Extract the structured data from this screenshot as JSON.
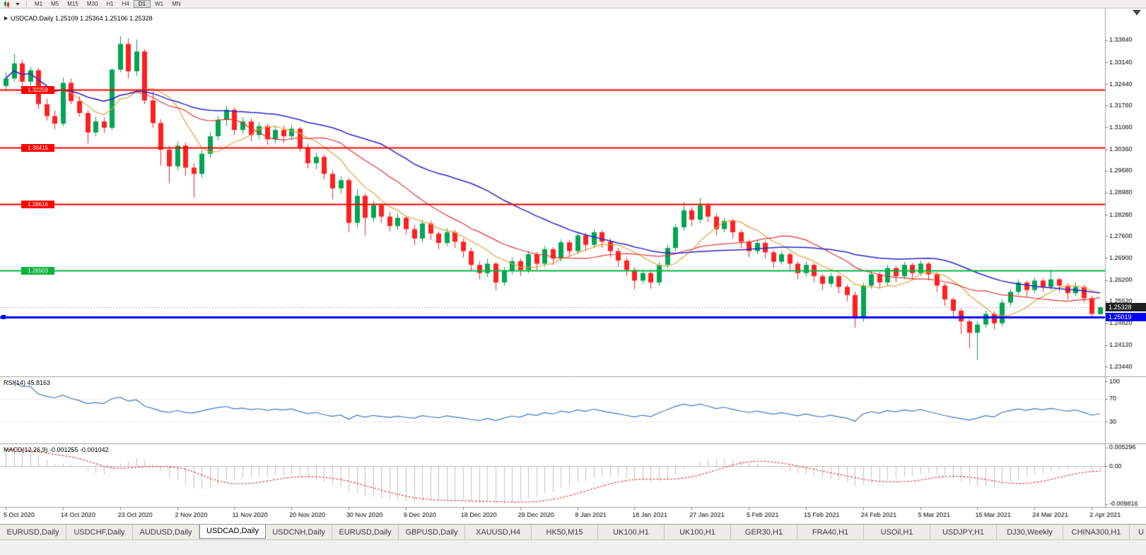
{
  "toolbar": {
    "timeframes": [
      "M1",
      "M5",
      "M15",
      "M30",
      "H1",
      "H4",
      "D1",
      "W1",
      "MN"
    ],
    "active": "D1",
    "icons": [
      "candlestick-chart-icon",
      "dropdown-arrow-icon"
    ]
  },
  "chart": {
    "info_line": "USDCAD,Daily 1.25109 1.25364 1.25106 1.25328",
    "symbol": "USDCAD",
    "timeframe": "Daily",
    "open": "1.25109",
    "high": "1.25364",
    "low": "1.25106",
    "close": "1.25328"
  },
  "chart_data": {
    "type": "candlestick",
    "symbol": "USDCAD",
    "timeframe": "Daily",
    "price_axis": {
      "range": [
        1.3485,
        1.2313
      ],
      "ticks": [
        "1.33840",
        "1.33140",
        "1.32440",
        "1.31760",
        "1.31060",
        "1.30360",
        "1.29680",
        "1.28980",
        "1.28280",
        "1.27600",
        "1.26900",
        "1.26200",
        "1.25520",
        "1.24820",
        "1.24120",
        "1.23440"
      ]
    },
    "date_ticks": [
      "5 Oct 2020",
      "14 Oct 2020",
      "23 Oct 2020",
      "2 Nov 2020",
      "11 Nov 2020",
      "20 Nov 2020",
      "30 Nov 2020",
      "9 Dec 2020",
      "18 Dec 2020",
      "29 Dec 2020",
      "8 Jan 2021",
      "18 Jan 2021",
      "27 Jan 2021",
      "5 Feb 2021",
      "15 Feb 2021",
      "24 Feb 2021",
      "5 Mar 2021",
      "15 Mar 2021",
      "24 Mar 2021",
      "2 Apr 2021"
    ],
    "bars_per_date_tick": 7,
    "candles": [
      [
        1.3238,
        1.3282,
        1.3222,
        1.3262
      ],
      [
        1.3262,
        1.334,
        1.3252,
        1.331
      ],
      [
        1.331,
        1.3322,
        1.3238,
        1.3252
      ],
      [
        1.3252,
        1.3298,
        1.324,
        1.3288
      ],
      [
        1.3288,
        1.3295,
        1.3165,
        1.318
      ],
      [
        1.318,
        1.3198,
        1.3128,
        1.3142
      ],
      [
        1.3142,
        1.316,
        1.31,
        1.3118
      ],
      [
        1.3118,
        1.3265,
        1.311,
        1.3248
      ],
      [
        1.3248,
        1.3262,
        1.318,
        1.319
      ],
      [
        1.319,
        1.3205,
        1.314,
        1.3152
      ],
      [
        1.3152,
        1.3162,
        1.3055,
        1.309
      ],
      [
        1.309,
        1.314,
        1.3078,
        1.3125
      ],
      [
        1.3125,
        1.3138,
        1.3088,
        1.3105
      ],
      [
        1.3105,
        1.3295,
        1.3098,
        1.329
      ],
      [
        1.329,
        1.3397,
        1.3282,
        1.3372
      ],
      [
        1.3372,
        1.339,
        1.3262,
        1.3285
      ],
      [
        1.3285,
        1.3386,
        1.327,
        1.3348
      ],
      [
        1.3348,
        1.3355,
        1.318,
        1.3192
      ],
      [
        1.3192,
        1.322,
        1.3105,
        1.312
      ],
      [
        1.312,
        1.3132,
        1.2985,
        1.3035
      ],
      [
        1.3035,
        1.3048,
        1.2928,
        1.2982
      ],
      [
        1.2982,
        1.3062,
        1.2968,
        1.3048
      ],
      [
        1.3048,
        1.3058,
        1.2952,
        1.2978
      ],
      [
        1.2978,
        1.2992,
        1.2882,
        1.2958
      ],
      [
        1.2958,
        1.3035,
        1.2945,
        1.3022
      ],
      [
        1.3022,
        1.3092,
        1.301,
        1.3078
      ],
      [
        1.3078,
        1.3142,
        1.3065,
        1.313
      ],
      [
        1.313,
        1.3175,
        1.311,
        1.3162
      ],
      [
        1.3162,
        1.317,
        1.3082,
        1.3098
      ],
      [
        1.3098,
        1.3138,
        1.3085,
        1.3125
      ],
      [
        1.3125,
        1.3135,
        1.3062,
        1.3082
      ],
      [
        1.3082,
        1.3122,
        1.3068,
        1.311
      ],
      [
        1.311,
        1.3118,
        1.305,
        1.3068
      ],
      [
        1.3068,
        1.311,
        1.3055,
        1.3098
      ],
      [
        1.3098,
        1.3112,
        1.3058,
        1.3078
      ],
      [
        1.3078,
        1.3115,
        1.3065,
        1.3102
      ],
      [
        1.3102,
        1.3108,
        1.3028,
        1.3042
      ],
      [
        1.3042,
        1.3055,
        1.2975,
        1.2992
      ],
      [
        1.2992,
        1.3025,
        1.2972,
        1.3012
      ],
      [
        1.3012,
        1.302,
        1.294,
        1.2958
      ],
      [
        1.2958,
        1.2968,
        1.2878,
        1.2912
      ],
      [
        1.2912,
        1.295,
        1.2895,
        1.2938
      ],
      [
        1.2938,
        1.2945,
        1.2772,
        1.2802
      ],
      [
        1.2802,
        1.2908,
        1.2788,
        1.2888
      ],
      [
        1.2888,
        1.2895,
        1.2762,
        1.2818
      ],
      [
        1.2818,
        1.2872,
        1.2805,
        1.2858
      ],
      [
        1.2858,
        1.2865,
        1.2802,
        1.2822
      ],
      [
        1.2822,
        1.2838,
        1.2775,
        1.2792
      ],
      [
        1.2792,
        1.2832,
        1.278,
        1.2818
      ],
      [
        1.2818,
        1.2825,
        1.2765,
        1.2782
      ],
      [
        1.2782,
        1.2795,
        1.2732,
        1.2752
      ],
      [
        1.2752,
        1.2812,
        1.274,
        1.28
      ],
      [
        1.28,
        1.2808,
        1.2748,
        1.2768
      ],
      [
        1.2768,
        1.2775,
        1.2718,
        1.2738
      ],
      [
        1.2738,
        1.2785,
        1.2728,
        1.2772
      ],
      [
        1.2772,
        1.278,
        1.2722,
        1.2742
      ],
      [
        1.2742,
        1.2752,
        1.2692,
        1.2712
      ],
      [
        1.2712,
        1.2722,
        1.2648,
        1.2668
      ],
      [
        1.2668,
        1.268,
        1.2622,
        1.2642
      ],
      [
        1.2642,
        1.2688,
        1.263,
        1.2672
      ],
      [
        1.2672,
        1.2678,
        1.2588,
        1.2612
      ],
      [
        1.2612,
        1.266,
        1.2602,
        1.2648
      ],
      [
        1.2648,
        1.2692,
        1.2638,
        1.268
      ],
      [
        1.268,
        1.2688,
        1.2632,
        1.2652
      ],
      [
        1.2652,
        1.2712,
        1.2642,
        1.2702
      ],
      [
        1.2702,
        1.271,
        1.2652,
        1.2672
      ],
      [
        1.2672,
        1.2728,
        1.2662,
        1.2718
      ],
      [
        1.2718,
        1.2725,
        1.2668,
        1.2688
      ],
      [
        1.2688,
        1.275,
        1.2678,
        1.274
      ],
      [
        1.274,
        1.2748,
        1.2692,
        1.2712
      ],
      [
        1.2712,
        1.2772,
        1.2702,
        1.2762
      ],
      [
        1.2762,
        1.277,
        1.2712,
        1.2732
      ],
      [
        1.2732,
        1.2782,
        1.2722,
        1.2772
      ],
      [
        1.2772,
        1.278,
        1.2722,
        1.2742
      ],
      [
        1.2742,
        1.2752,
        1.2692,
        1.2712
      ],
      [
        1.2712,
        1.2722,
        1.2662,
        1.2682
      ],
      [
        1.2682,
        1.2692,
        1.2632,
        1.2652
      ],
      [
        1.2652,
        1.266,
        1.259,
        1.2618
      ],
      [
        1.2618,
        1.2652,
        1.2608,
        1.2642
      ],
      [
        1.2642,
        1.265,
        1.2592,
        1.2612
      ],
      [
        1.2612,
        1.2678,
        1.2602,
        1.2668
      ],
      [
        1.2668,
        1.2732,
        1.2658,
        1.2722
      ],
      [
        1.2722,
        1.2798,
        1.2712,
        1.2788
      ],
      [
        1.2788,
        1.2868,
        1.2778,
        1.2842
      ],
      [
        1.2842,
        1.2852,
        1.2792,
        1.2812
      ],
      [
        1.2812,
        1.2882,
        1.2802,
        1.2858
      ],
      [
        1.2858,
        1.2865,
        1.2805,
        1.2822
      ],
      [
        1.2822,
        1.2832,
        1.2762,
        1.2782
      ],
      [
        1.2782,
        1.2818,
        1.2772,
        1.2808
      ],
      [
        1.2808,
        1.2815,
        1.2752,
        1.2772
      ],
      [
        1.2772,
        1.278,
        1.2722,
        1.2742
      ],
      [
        1.2742,
        1.275,
        1.2692,
        1.2712
      ],
      [
        1.2712,
        1.2748,
        1.2702,
        1.2738
      ],
      [
        1.2738,
        1.2745,
        1.2688,
        1.2708
      ],
      [
        1.2708,
        1.2715,
        1.2658,
        1.2678
      ],
      [
        1.2678,
        1.2712,
        1.2668,
        1.2702
      ],
      [
        1.2702,
        1.2708,
        1.2652,
        1.2672
      ],
      [
        1.2672,
        1.268,
        1.2622,
        1.2642
      ],
      [
        1.2642,
        1.2678,
        1.2632,
        1.2668
      ],
      [
        1.2668,
        1.2675,
        1.2612,
        1.2632
      ],
      [
        1.2632,
        1.264,
        1.2588,
        1.2608
      ],
      [
        1.2608,
        1.2642,
        1.2598,
        1.2632
      ],
      [
        1.2632,
        1.2638,
        1.2578,
        1.2598
      ],
      [
        1.2598,
        1.2605,
        1.2552,
        1.2572
      ],
      [
        1.2572,
        1.2582,
        1.2468,
        1.2498
      ],
      [
        1.2498,
        1.2612,
        1.2488,
        1.2602
      ],
      [
        1.2602,
        1.2648,
        1.2592,
        1.2638
      ],
      [
        1.2638,
        1.2645,
        1.2592,
        1.2612
      ],
      [
        1.2612,
        1.2668,
        1.2602,
        1.2658
      ],
      [
        1.2658,
        1.2665,
        1.2612,
        1.2632
      ],
      [
        1.2632,
        1.2678,
        1.2622,
        1.2668
      ],
      [
        1.2668,
        1.2675,
        1.2622,
        1.2642
      ],
      [
        1.2642,
        1.2682,
        1.2632,
        1.2672
      ],
      [
        1.2672,
        1.2678,
        1.2618,
        1.2638
      ],
      [
        1.2638,
        1.2645,
        1.2582,
        1.2602
      ],
      [
        1.2602,
        1.261,
        1.2538,
        1.2558
      ],
      [
        1.2558,
        1.2565,
        1.2502,
        1.2522
      ],
      [
        1.2522,
        1.253,
        1.2448,
        1.2488
      ],
      [
        1.2488,
        1.2495,
        1.2402,
        1.2452
      ],
      [
        1.2452,
        1.2488,
        1.2365,
        1.2478
      ],
      [
        1.2478,
        1.2522,
        1.2468,
        1.2512
      ],
      [
        1.2512,
        1.252,
        1.2462,
        1.2482
      ],
      [
        1.2482,
        1.2558,
        1.2472,
        1.2548
      ],
      [
        1.2548,
        1.2592,
        1.2538,
        1.2582
      ],
      [
        1.2582,
        1.2622,
        1.2572,
        1.2612
      ],
      [
        1.2612,
        1.2618,
        1.2568,
        1.2588
      ],
      [
        1.2588,
        1.2628,
        1.2578,
        1.2618
      ],
      [
        1.2618,
        1.2625,
        1.2582,
        1.2598
      ],
      [
        1.2598,
        1.2648,
        1.2588,
        1.2622
      ],
      [
        1.2622,
        1.2628,
        1.2582,
        1.2602
      ],
      [
        1.2602,
        1.261,
        1.2558,
        1.2578
      ],
      [
        1.2578,
        1.2612,
        1.2568,
        1.2598
      ],
      [
        1.2598,
        1.2605,
        1.2548,
        1.2562
      ],
      [
        1.2562,
        1.257,
        1.2498,
        1.2512
      ],
      [
        1.25109,
        1.25364,
        1.25106,
        1.25328
      ]
    ],
    "moving_averages": [
      {
        "period": 8,
        "color": "#E2A037",
        "width": 1.2
      },
      {
        "period": 16,
        "color": "#E03535",
        "width": 1.2
      },
      {
        "period": 34,
        "color": "#2525CC",
        "width": 1.5
      }
    ],
    "hlines": [
      {
        "value": 1.32258,
        "label": "1.32258",
        "color": "#FF0000",
        "width": 2,
        "left_tag": true
      },
      {
        "value": 1.30415,
        "label": "1.30415",
        "color": "#FF0000",
        "width": 2,
        "left_tag": true
      },
      {
        "value": 1.28616,
        "label": "1.28616",
        "color": "#FF0000",
        "width": 2,
        "left_tag": true
      },
      {
        "value": 1.26503,
        "label": "1.26503",
        "color": "#00B43C",
        "width": 2,
        "left_tag": true
      },
      {
        "value": 1.25019,
        "label": "1.25019",
        "color": "#0000FF",
        "width": 3,
        "scale_tag": true,
        "handle": true
      }
    ],
    "last_price": {
      "value": 1.25328,
      "label": "1.25328",
      "tag_bg": "#1F1F1F"
    },
    "rsi": {
      "label": "RSI(14) 45.8163",
      "period": 14,
      "value": 45.8163,
      "range": [
        108,
        -8
      ],
      "levels": [
        70,
        30
      ],
      "ticks": [
        "100",
        "70",
        "30"
      ],
      "color": "#3E77C2"
    },
    "macd": {
      "label": "MACD(12,26,9) -0.001255 -0.001042",
      "fast": 12,
      "slow": 26,
      "signal": 9,
      "values": [
        -0.001255,
        -0.001042
      ],
      "range": [
        0.005296,
        -0.009816
      ],
      "ticks": [
        "0.005296",
        "0.00",
        "-0.009816"
      ],
      "hist_color": "#C4C4C4",
      "signal_color": "#E03535"
    }
  },
  "tabs": {
    "items": [
      "EURUSD,Daily",
      "USDCHF,Daily",
      "AUDUSD,Daily",
      "USDCAD,Daily",
      "USDCNH,Daily",
      "EURUSD,Daily",
      "GBPUSD,Daily",
      "XAUUSD,H4",
      "HK50,M15",
      "UK100,H1",
      "UK100,H1",
      "GER30,H1",
      "FRA40,H1",
      "USOil,H1",
      "USDJPY,H1",
      "DJ30,Weekly",
      "CHINA300,H1",
      "U"
    ],
    "active_index": 3
  },
  "colors": {
    "up": "#00A651",
    "down": "#FF2020",
    "background": "#FFFFFF",
    "panel_border": "#A0A0A0",
    "scale_text": "#000000"
  }
}
